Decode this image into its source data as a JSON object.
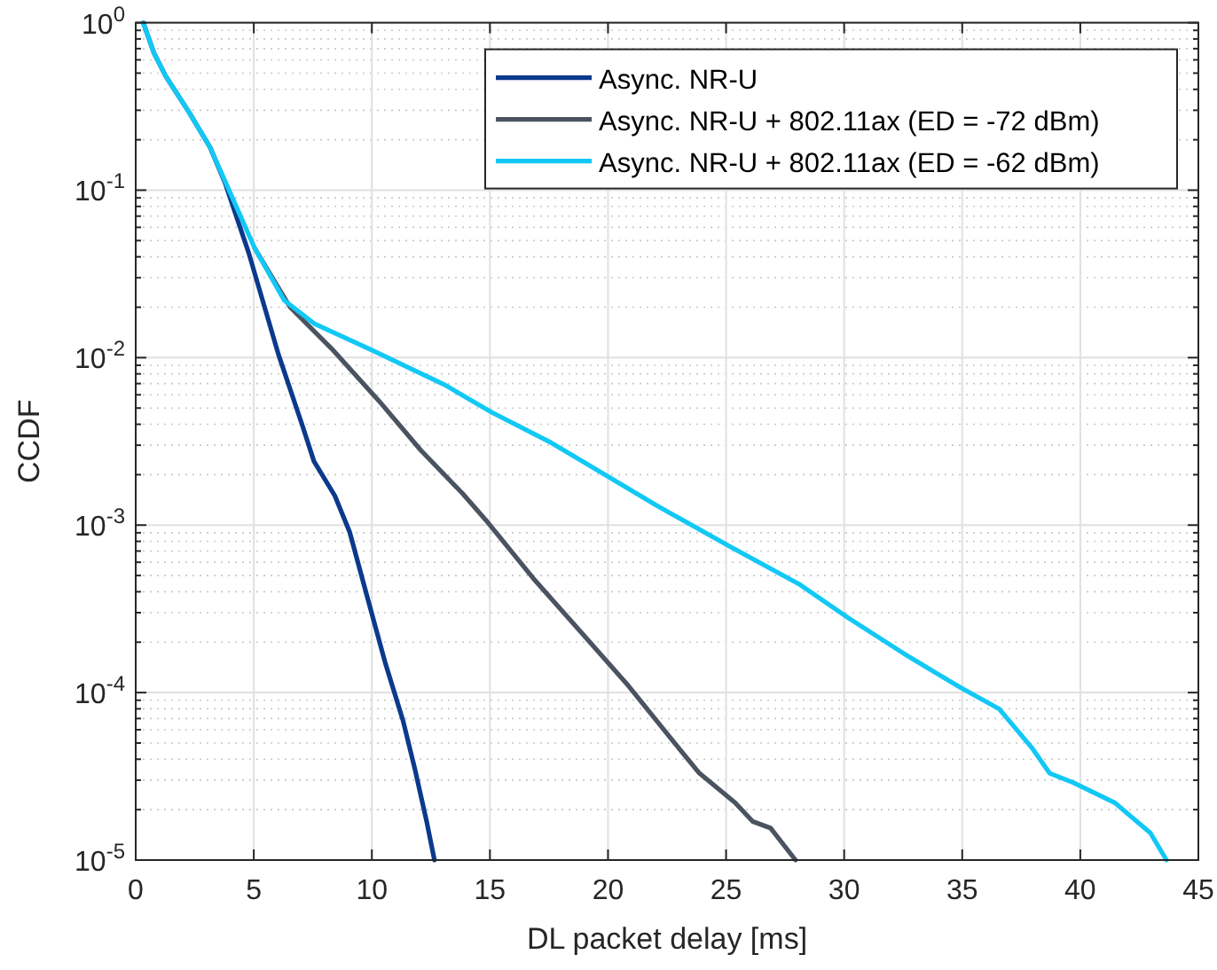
{
  "chart_data": {
    "type": "line",
    "xlabel": "DL packet delay [ms]",
    "ylabel": "CCDF",
    "log": "y",
    "grid": true,
    "legend": "top right",
    "line_style": "solid",
    "marker": "none",
    "xlim": [
      0,
      45
    ],
    "xticks": [
      0,
      5,
      10,
      15,
      20,
      25,
      30,
      35,
      40,
      45
    ],
    "ylim": [
      1e-05,
      1
    ],
    "yticks": [
      {
        "value": 1e-05,
        "label": "10$^{-5}$"
      },
      {
        "value": 0.0001,
        "label": "10$^{-4}$"
      },
      {
        "value": 0.001,
        "label": "10$^{-3}$"
      },
      {
        "value": 0.01,
        "label": "10$^{-2}$"
      },
      {
        "value": 0.1,
        "label": "10$^{-1}$"
      },
      {
        "value": 1,
        "label": "10$^{0}$"
      }
    ],
    "series": [
      {
        "name": "Async. NR-U",
        "color": "#0b3a8c",
        "x": [
          0.32,
          0.77,
          1.27,
          2.27,
          3.15,
          3.78,
          4.79,
          6.04,
          7.04,
          7.55,
          8.43,
          9.06,
          9.81,
          10.57,
          11.32,
          11.82,
          12.32,
          12.65
        ],
        "values": [
          1,
          0.66,
          0.48,
          0.29,
          0.18,
          0.111,
          0.042,
          0.0105,
          0.004,
          0.0024,
          0.0015,
          0.00091,
          0.00037,
          0.00015,
          6.8e-05,
          3.5e-05,
          1.7e-05,
          1e-05
        ]
      },
      {
        "name": "Async. NR-U + 802.11ax (ED = -72 dBm)",
        "color": "#4a5360",
        "x": [
          5.04,
          6.54,
          8.3,
          10.31,
          12.07,
          13.83,
          14.83,
          16.84,
          18.85,
          20.86,
          22.87,
          23.87,
          25.38,
          26.13,
          26.89,
          27.94
        ],
        "values": [
          0.045,
          0.02,
          0.0113,
          0.0055,
          0.0028,
          0.00155,
          0.00107,
          0.00048,
          0.00023,
          0.00011,
          4.9e-05,
          3.3e-05,
          2.2e-05,
          1.7e-05,
          1.55e-05,
          1e-05
        ]
      },
      {
        "name": "Async. NR-U + 802.11ax (ED = -62 dBm)",
        "color": "#12c8f5",
        "x": [
          0.32,
          0.77,
          1.27,
          2.27,
          3.15,
          5.04,
          6.29,
          7.55,
          10.06,
          13.07,
          15.09,
          17.6,
          22.1,
          25.12,
          28.14,
          30.16,
          32.67,
          34.93,
          36.56,
          37.94,
          38.7,
          39.7,
          41.46,
          42.97,
          43.65
        ],
        "values": [
          1,
          0.66,
          0.48,
          0.29,
          0.18,
          0.045,
          0.022,
          0.016,
          0.011,
          0.0069,
          0.0047,
          0.0031,
          0.0013,
          0.00075,
          0.00044,
          0.00028,
          0.000166,
          0.000107,
          8e-05,
          4.7e-05,
          3.3e-05,
          2.9e-05,
          2.2e-05,
          1.45e-05,
          1e-05
        ]
      }
    ]
  }
}
